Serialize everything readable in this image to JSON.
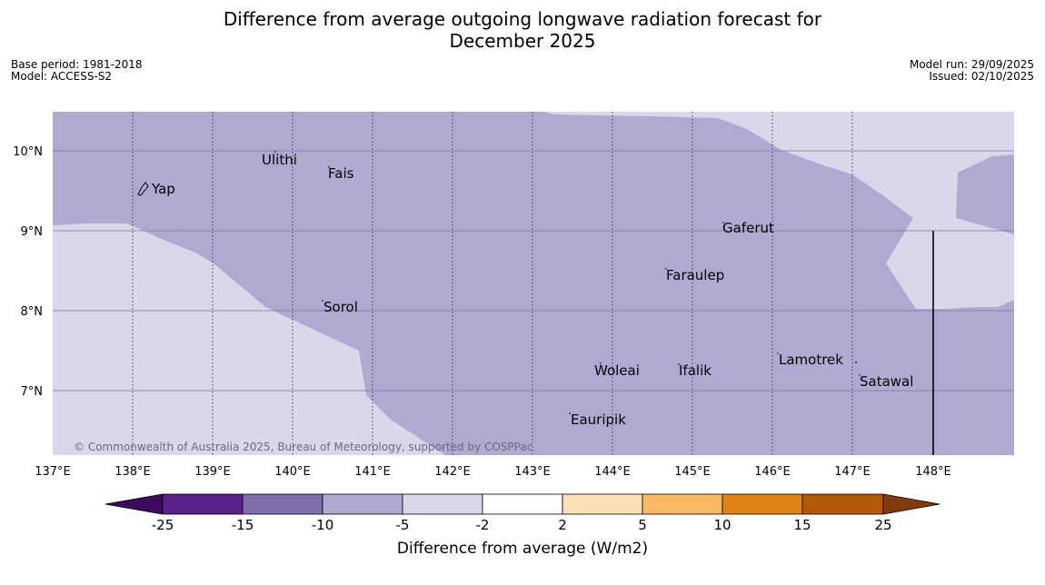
{
  "title": {
    "line1": "Difference from average outgoing longwave radiation forecast for",
    "line2": "December 2025"
  },
  "meta": {
    "base_period": "Base period: 1981-2018",
    "model": "Model: ACCESS-S2",
    "model_run": "Model run: 29/09/2025",
    "issued": "Issued: 02/10/2025"
  },
  "map": {
    "lat_ticks": [
      "10°N",
      "9°N",
      "8°N",
      "7°N"
    ],
    "lon_ticks": [
      "137°E",
      "138°E",
      "139°E",
      "140°E",
      "141°E",
      "142°E",
      "143°E",
      "144°E",
      "145°E",
      "146°E",
      "147°E",
      "148°E"
    ],
    "places": [
      "Ulithi",
      "Fais",
      "Yap",
      "Gaferut",
      "Faraulep",
      "Sorol",
      "Lamotrek",
      "Woleai",
      "Ifalik",
      "Satawal",
      "Eauripik"
    ],
    "copyright": "© Commonwealth of Australia 2025, Bureau of Meteorology, supported by COSPPac",
    "colors": {
      "band_neg10_neg5": "#b0aad2",
      "band_neg5_neg2": "#d8d8ea"
    }
  },
  "colorbar": {
    "labels": [
      "-25",
      "-15",
      "-10",
      "-5",
      "-2",
      "2",
      "5",
      "10",
      "15",
      "25"
    ],
    "colors": [
      "#3c0a5c",
      "#5a2289",
      "#7f6eab",
      "#b0aad2",
      "#d8d8ea",
      "#ffffff",
      "#fee0b6",
      "#fdb863",
      "#e08214",
      "#b35806",
      "#7f3b08"
    ],
    "title": "Difference from average (W/m2)"
  }
}
